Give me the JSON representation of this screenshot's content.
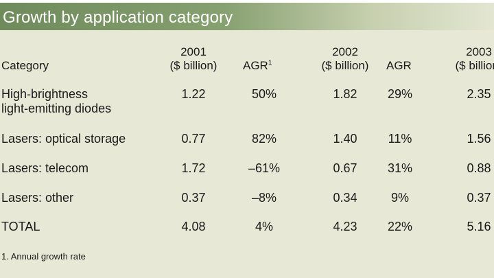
{
  "title": "Growth by application category",
  "table": {
    "headers": {
      "category": "Category",
      "y2001_year": "2001",
      "y2001_unit": "($ billion)",
      "agr1": "AGR",
      "agr1_mark": "1",
      "y2002_year": "2002",
      "y2002_unit": "($ billion)",
      "agr2": "AGR",
      "y2003_year": "2003",
      "y2003_unit": "($ billion)"
    },
    "rows": [
      {
        "category_line1": "High-brightness",
        "category_line2": "light-emitting diodes",
        "v2001": "1.22",
        "agr1": "50%",
        "v2002": "1.82",
        "agr2": "29%",
        "v2003": "2.35"
      },
      {
        "category_line1": "Lasers: optical storage",
        "category_line2": "",
        "v2001": "0.77",
        "agr1": "82%",
        "v2002": "1.40",
        "agr2": "11%",
        "v2003": "1.56"
      },
      {
        "category_line1": "Lasers: telecom",
        "category_line2": "",
        "v2001": "1.72",
        "agr1": "–61%",
        "v2002": "0.67",
        "agr2": "31%",
        "v2003": "0.88"
      },
      {
        "category_line1": "Lasers: other",
        "category_line2": "",
        "v2001": "0.37",
        "agr1": "–8%",
        "v2002": "0.34",
        "agr2": "9%",
        "v2003": "0.37"
      },
      {
        "category_line1": "TOTAL",
        "category_line2": "",
        "v2001": "4.08",
        "agr1": "4%",
        "v2002": "4.23",
        "agr2": "22%",
        "v2003": "5.16"
      }
    ]
  },
  "footnote": "1. Annual growth rate",
  "colors": {
    "panel_background": "#e7e9d6",
    "title_bar_start": "#6f8a5b",
    "title_bar_end": "#e3e6d2",
    "title_text": "#ffffff",
    "body_text": "#1a1a1a"
  }
}
